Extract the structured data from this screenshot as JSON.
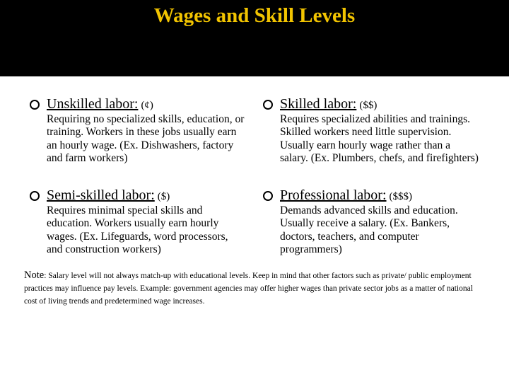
{
  "colors": {
    "title_bg": "#000000",
    "title_fg": "#f2c400",
    "page_bg": "#ffffff",
    "text": "#000000"
  },
  "title": "Wages and Skill Levels",
  "items": [
    {
      "heading": "Unskilled labor:",
      "symbol": "(¢)",
      "body": "Requiring no specialized skills, education, or training. Workers in these jobs usually earn an hourly wage. (Ex. Dishwashers, factory and farm workers)"
    },
    {
      "heading": "Skilled labor:",
      "symbol": "($$)",
      "body": "Requires specialized abilities and trainings. Skilled workers need little supervision. Usually earn hourly wage rather than a salary. (Ex. Plumbers, chefs, and firefighters)"
    },
    {
      "heading": "Semi-skilled labor:",
      "symbol": "($)",
      "body": "Requires minimal special skills and education. Workers usually earn hourly wages. (Ex. Lifeguards, word processors, and construction workers)"
    },
    {
      "heading": "Professional labor:",
      "symbol": "($$$)",
      "body": "Demands advanced skills and education. Usually receive a salary. (Ex. Bankers, doctors, teachers, and computer programmers)"
    }
  ],
  "note": {
    "label": "Note",
    "text": ": Salary level will not always match-up with educational levels. Keep in mind that other factors such as private/ public employment practices may influence pay levels. Example: government agencies may offer higher wages than private sector jobs as a matter of national cost of living trends and predetermined wage increases."
  }
}
